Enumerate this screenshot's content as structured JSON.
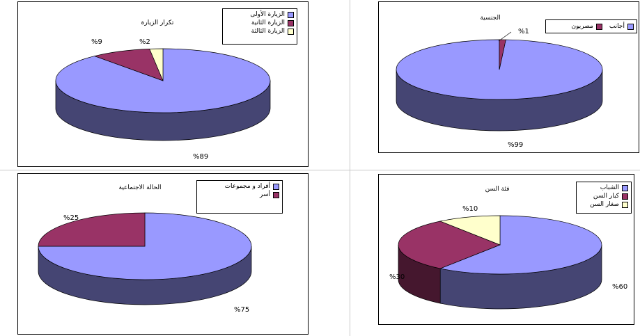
{
  "chart_data": [
    {
      "type": "pie",
      "title": "تكرار الزيارة",
      "categories": [
        "الزيارة الأولى",
        "الزيارة الثانية",
        "الزيارة الثالثة"
      ],
      "values": [
        89,
        9,
        2
      ],
      "value_labels": [
        "%89",
        "%9",
        "%2"
      ],
      "colors": [
        "#9999ff",
        "#993366",
        "#ffffcc"
      ],
      "legend": "top-right"
    },
    {
      "type": "pie",
      "title": "الجنسية",
      "categories": [
        "أجانب",
        "مصريون"
      ],
      "values": [
        99,
        1
      ],
      "value_labels": [
        "%99",
        "%1"
      ],
      "colors": [
        "#9999ff",
        "#993366"
      ],
      "legend": "top-right"
    },
    {
      "type": "pie",
      "title": "الحالة الاجتماعية",
      "categories": [
        "أفراد و مجموعات",
        "أسر"
      ],
      "values": [
        75,
        25
      ],
      "value_labels": [
        "%75",
        "%25"
      ],
      "colors": [
        "#9999ff",
        "#993366"
      ],
      "legend": "top-right"
    },
    {
      "type": "pie",
      "title": "فئة السن",
      "categories": [
        "الشباب",
        "كبار السن",
        "صغار السن"
      ],
      "values": [
        60,
        30,
        10
      ],
      "value_labels": [
        "%60",
        "%30",
        "%10"
      ],
      "colors": [
        "#9999ff",
        "#993366",
        "#ffffcc"
      ],
      "legend": "top-right"
    }
  ]
}
